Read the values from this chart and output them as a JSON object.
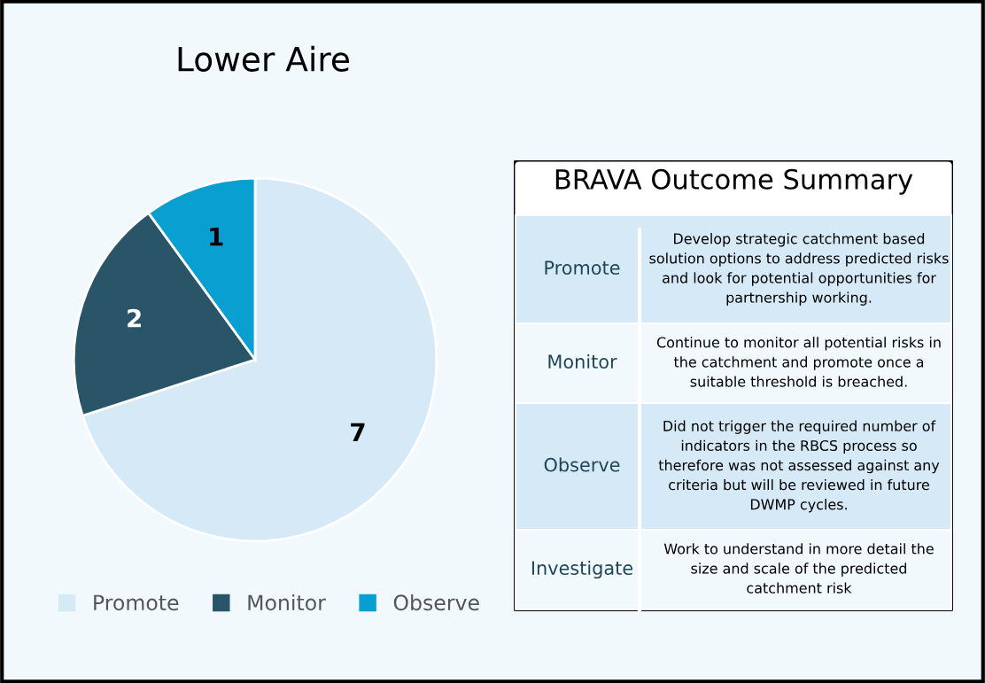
{
  "chart_data": [
    {
      "type": "pie",
      "title": "Lower Aire",
      "categories": [
        "Promote",
        "Monitor",
        "Observe"
      ],
      "values": [
        7,
        2,
        1
      ],
      "colors": [
        "#d5e9f7",
        "#2a5467",
        "#0a9fd1"
      ],
      "data_labels": true,
      "legend": "bottom"
    },
    {
      "type": "other",
      "title": "BRAVA Outcome Summary",
      "categories": [
        "Promote",
        "Monitor",
        "Observe",
        "Investigate"
      ],
      "annotations": [
        "Develop strategic catchment based\nsolution options to address predicted risks\nand look for potential opportunities for\npartnership working.",
        "Continue to monitor all potential risks in\nthe catchment and promote once a\nsuitable threshold is breached.",
        "Did not trigger the required number of\nindicators in the RBCS process so\ntherefore was not assessed against any\ncriteria but will be reviewed in future\nDWMP cycles.",
        "Work to understand in more detail the\nsize and scale of the predicted\ncatchment risk"
      ]
    }
  ]
}
